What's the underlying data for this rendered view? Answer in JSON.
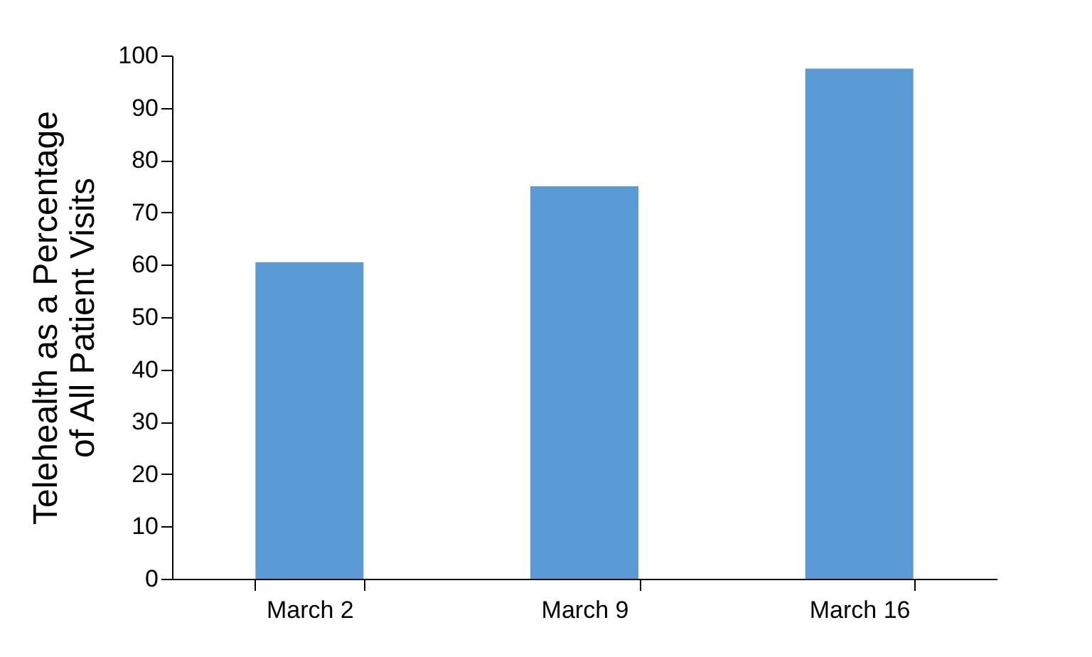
{
  "chart_data": {
    "type": "bar",
    "ylabel": "Telehealth as a Percentage\nof All Patient Visits",
    "categories": [
      "March 2",
      "March 9",
      "March 16"
    ],
    "values": [
      60.5,
      75,
      97.5
    ],
    "color": "#5b9bd5",
    "ylim": [
      0,
      100
    ],
    "yticks": [
      0,
      10,
      20,
      30,
      40,
      50,
      60,
      70,
      80,
      90,
      100
    ],
    "grid": false
  }
}
